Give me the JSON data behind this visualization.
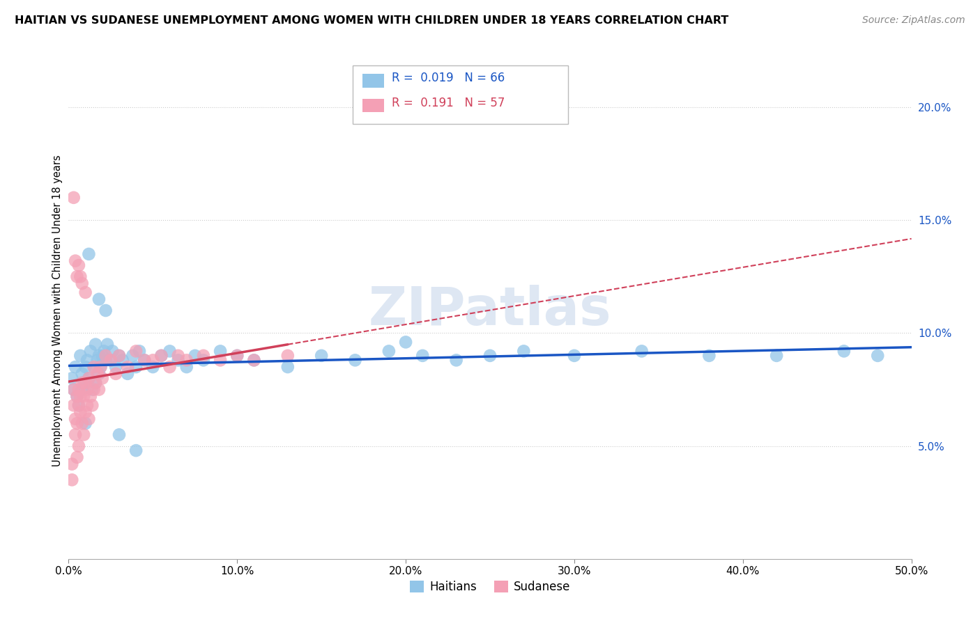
{
  "title": "HAITIAN VS SUDANESE UNEMPLOYMENT AMONG WOMEN WITH CHILDREN UNDER 18 YEARS CORRELATION CHART",
  "source": "Source: ZipAtlas.com",
  "ylabel": "Unemployment Among Women with Children Under 18 years",
  "xlim": [
    0.0,
    0.5
  ],
  "ylim": [
    0.0,
    0.22
  ],
  "xticks": [
    0.0,
    0.1,
    0.2,
    0.3,
    0.4,
    0.5
  ],
  "yticks": [
    0.05,
    0.1,
    0.15,
    0.2
  ],
  "ytick_labels": [
    "5.0%",
    "10.0%",
    "15.0%",
    "20.0%"
  ],
  "xtick_labels": [
    "0.0%",
    "10.0%",
    "20.0%",
    "30.0%",
    "40.0%",
    "50.0%"
  ],
  "haitian_color": "#92C5E8",
  "sudanese_color": "#F4A0B5",
  "haitian_R": 0.019,
  "haitian_N": 66,
  "sudanese_R": 0.191,
  "sudanese_N": 57,
  "watermark": "ZIPatlas",
  "legend_haitian": "Haitians",
  "legend_sudanese": "Sudanese",
  "haitian_x": [
    0.002,
    0.003,
    0.004,
    0.005,
    0.006,
    0.007,
    0.008,
    0.008,
    0.009,
    0.01,
    0.01,
    0.011,
    0.012,
    0.013,
    0.014,
    0.015,
    0.016,
    0.016,
    0.017,
    0.018,
    0.018,
    0.019,
    0.02,
    0.021,
    0.022,
    0.023,
    0.025,
    0.026,
    0.028,
    0.03,
    0.032,
    0.035,
    0.038,
    0.04,
    0.042,
    0.045,
    0.05,
    0.055,
    0.06,
    0.065,
    0.07,
    0.075,
    0.08,
    0.09,
    0.1,
    0.11,
    0.13,
    0.15,
    0.17,
    0.19,
    0.21,
    0.23,
    0.25,
    0.27,
    0.3,
    0.34,
    0.38,
    0.42,
    0.46,
    0.48,
    0.012,
    0.018,
    0.022,
    0.03,
    0.04,
    0.2
  ],
  "haitian_y": [
    0.08,
    0.075,
    0.085,
    0.072,
    0.068,
    0.09,
    0.075,
    0.082,
    0.078,
    0.085,
    0.06,
    0.088,
    0.08,
    0.092,
    0.075,
    0.085,
    0.095,
    0.078,
    0.088,
    0.082,
    0.09,
    0.085,
    0.09,
    0.092,
    0.088,
    0.095,
    0.088,
    0.092,
    0.085,
    0.09,
    0.088,
    0.082,
    0.09,
    0.085,
    0.092,
    0.088,
    0.085,
    0.09,
    0.092,
    0.088,
    0.085,
    0.09,
    0.088,
    0.092,
    0.09,
    0.088,
    0.085,
    0.09,
    0.088,
    0.092,
    0.09,
    0.088,
    0.09,
    0.092,
    0.09,
    0.092,
    0.09,
    0.09,
    0.092,
    0.09,
    0.135,
    0.115,
    0.11,
    0.055,
    0.048,
    0.096
  ],
  "sudanese_x": [
    0.002,
    0.002,
    0.003,
    0.003,
    0.004,
    0.004,
    0.005,
    0.005,
    0.005,
    0.006,
    0.006,
    0.006,
    0.007,
    0.007,
    0.008,
    0.008,
    0.009,
    0.009,
    0.01,
    0.01,
    0.011,
    0.011,
    0.012,
    0.012,
    0.013,
    0.014,
    0.015,
    0.015,
    0.016,
    0.017,
    0.018,
    0.019,
    0.02,
    0.022,
    0.025,
    0.028,
    0.03,
    0.035,
    0.04,
    0.045,
    0.05,
    0.055,
    0.06,
    0.065,
    0.07,
    0.08,
    0.09,
    0.1,
    0.11,
    0.13,
    0.003,
    0.004,
    0.005,
    0.006,
    0.007,
    0.008,
    0.01
  ],
  "sudanese_y": [
    0.035,
    0.042,
    0.068,
    0.075,
    0.062,
    0.055,
    0.045,
    0.06,
    0.072,
    0.068,
    0.05,
    0.075,
    0.065,
    0.072,
    0.06,
    0.078,
    0.055,
    0.072,
    0.065,
    0.078,
    0.068,
    0.075,
    0.062,
    0.08,
    0.072,
    0.068,
    0.075,
    0.085,
    0.078,
    0.082,
    0.075,
    0.085,
    0.08,
    0.09,
    0.088,
    0.082,
    0.09,
    0.085,
    0.092,
    0.088,
    0.088,
    0.09,
    0.085,
    0.09,
    0.088,
    0.09,
    0.088,
    0.09,
    0.088,
    0.09,
    0.16,
    0.132,
    0.125,
    0.13,
    0.125,
    0.122,
    0.118
  ]
}
